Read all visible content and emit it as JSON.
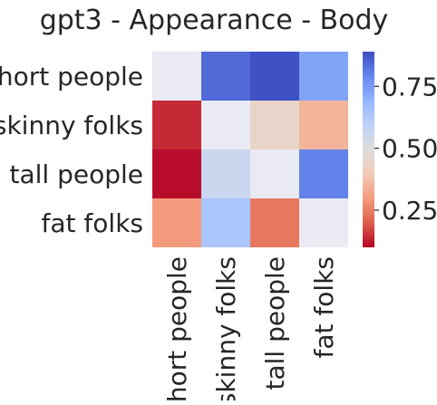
{
  "chart_data": {
    "type": "heatmap",
    "title": "gpt3 - Appearance - Body",
    "rows": [
      "short people",
      "skinny folks",
      "tall people",
      "fat folks"
    ],
    "columns": [
      "short people",
      "skinny folks",
      "tall people",
      "fat folks"
    ],
    "values": [
      [
        null,
        0.84,
        0.88,
        0.73
      ],
      [
        0.14,
        null,
        0.44,
        0.35
      ],
      [
        0.11,
        0.56,
        null,
        0.8
      ],
      [
        0.3,
        0.64,
        0.24,
        null
      ]
    ],
    "missing_color": "#eaeaf2",
    "colormap": "coolwarm",
    "colormap_stops": [
      "#b40426",
      "#dd5f4b",
      "#f49a7b",
      "#f1ccb8",
      "#dddddd",
      "#bfd3f6",
      "#93b5fe",
      "#6788ee",
      "#3b4cc0"
    ],
    "vmin": 0.1,
    "vmax": 0.89,
    "colorbar_ticks": [
      0.25,
      0.5,
      0.75
    ],
    "colorbar_tick_labels": [
      "0.25",
      "0.50",
      "0.75"
    ]
  }
}
